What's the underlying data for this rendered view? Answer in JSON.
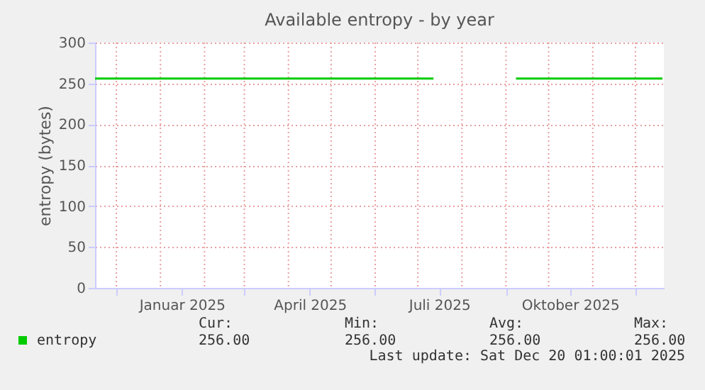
{
  "chart_data": {
    "type": "line",
    "title": "Available entropy - by year",
    "ylabel": "entropy (bytes)",
    "series": [
      {
        "name": "entropy",
        "color": "#00cc00",
        "x": [
          "2024-11-16",
          "2025-07-12",
          "2025-07-13",
          "2025-09-08",
          "2025-12-20"
        ],
        "values": [
          256,
          256,
          null,
          256,
          256
        ]
      }
    ],
    "xlim": [
      "2024-11-16",
      "2025-12-21"
    ],
    "xticks": [
      {
        "value": "2024-12-01",
        "label": null
      },
      {
        "value": "2025-01-01",
        "label": null
      },
      {
        "value": "2025-01-16",
        "label": "Januar 2025"
      },
      {
        "value": "2025-02-01",
        "label": null
      },
      {
        "value": "2025-03-01",
        "label": null
      },
      {
        "value": "2025-04-01",
        "label": null
      },
      {
        "value": "2025-04-16",
        "label": "April 2025"
      },
      {
        "value": "2025-05-01",
        "label": null
      },
      {
        "value": "2025-06-01",
        "label": null
      },
      {
        "value": "2025-07-01",
        "label": null
      },
      {
        "value": "2025-07-16",
        "label": "Juli 2025"
      },
      {
        "value": "2025-08-01",
        "label": null
      },
      {
        "value": "2025-09-01",
        "label": null
      },
      {
        "value": "2025-10-01",
        "label": null
      },
      {
        "value": "2025-10-16",
        "label": "Oktober 2025"
      },
      {
        "value": "2025-11-01",
        "label": null
      },
      {
        "value": "2025-12-01",
        "label": null
      }
    ],
    "ylim": [
      0,
      300
    ],
    "yticks": [
      0,
      50,
      100,
      150,
      200,
      250,
      300
    ],
    "grid": true,
    "legend": "bottom left",
    "annotations": [
      "Cur:",
      "Min:",
      "Avg:",
      "Max:",
      "256.00",
      "256.00",
      "256.00",
      "256.00",
      "Last update: Sat Dec 20 01:00:01 2025"
    ]
  }
}
